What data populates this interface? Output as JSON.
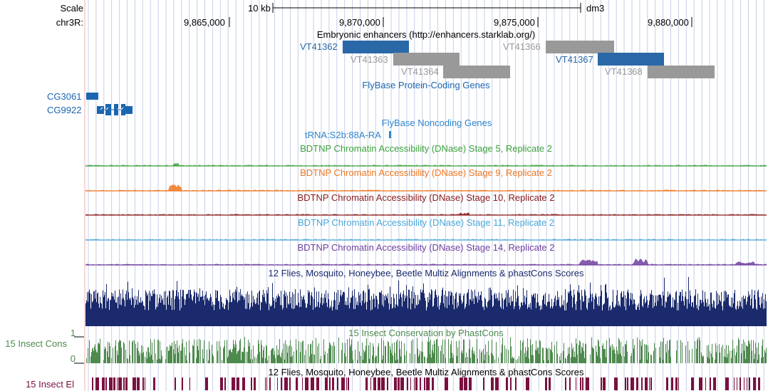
{
  "header": {
    "scale_label": "Scale",
    "chrom_label": "chr3R:",
    "scale_bar_text": "10 kb",
    "assembly": "dm3",
    "positions": [
      "9,865,000",
      "9,870,000",
      "9,875,000",
      "9,880,000"
    ]
  },
  "tracks": {
    "enhancers": {
      "title": "Embryonic enhancers (http://enhancers.starklab.org/)",
      "items": [
        {
          "label": "VT41362",
          "color": "#2a68a8"
        },
        {
          "label": "VT41363",
          "color": "#999999"
        },
        {
          "label": "VT41364",
          "color": "#999999"
        },
        {
          "label": "VT41366",
          "color": "#999999"
        },
        {
          "label": "VT41367",
          "color": "#2a68a8"
        },
        {
          "label": "VT41368",
          "color": "#999999"
        }
      ]
    },
    "protein_coding": {
      "title": "FlyBase Protein-Coding Genes",
      "genes": [
        "CG3061",
        "CG9922"
      ],
      "color": "#1a66b0"
    },
    "noncoding": {
      "title": "FlyBase Noncoding Genes",
      "gene": "tRNA:S2b:88A-RA",
      "color": "#2f86cc"
    },
    "dnase": [
      {
        "title": "BDTNP Chromatin Accessibility (DNase) Stage 5, Replicate 2",
        "color": "#3ca03c"
      },
      {
        "title": "BDTNP Chromatin Accessibility (DNase) Stage 9, Replicate 2",
        "color": "#ee7722"
      },
      {
        "title": "BDTNP Chromatin Accessibility (DNase) Stage 10, Replicate 2",
        "color": "#8b1a1a"
      },
      {
        "title": "BDTNP Chromatin Accessibility (DNase) Stage 11, Replicate 2",
        "color": "#4aa8d8"
      },
      {
        "title": "BDTNP Chromatin Accessibility (DNase) Stage 14, Replicate 2",
        "color": "#7040a0"
      }
    ],
    "multiz": {
      "title": "12 Flies, Mosquito, Honeybee, Beetle Multiz Alignments & phastCons Scores",
      "color": "#1a2a6c"
    },
    "cons15": {
      "title": "15 Insect Conservation by PhastCons",
      "left_label": "15 Insect Cons",
      "y_top": "1",
      "y_bottom": "0",
      "color": "#4e8a4e"
    },
    "elements15": {
      "title": "12 Flies, Mosquito, Honeybee, Beetle Multiz Alignments & phastCons Scores",
      "left_label": "15 Insect El",
      "color": "#7a1040"
    }
  }
}
